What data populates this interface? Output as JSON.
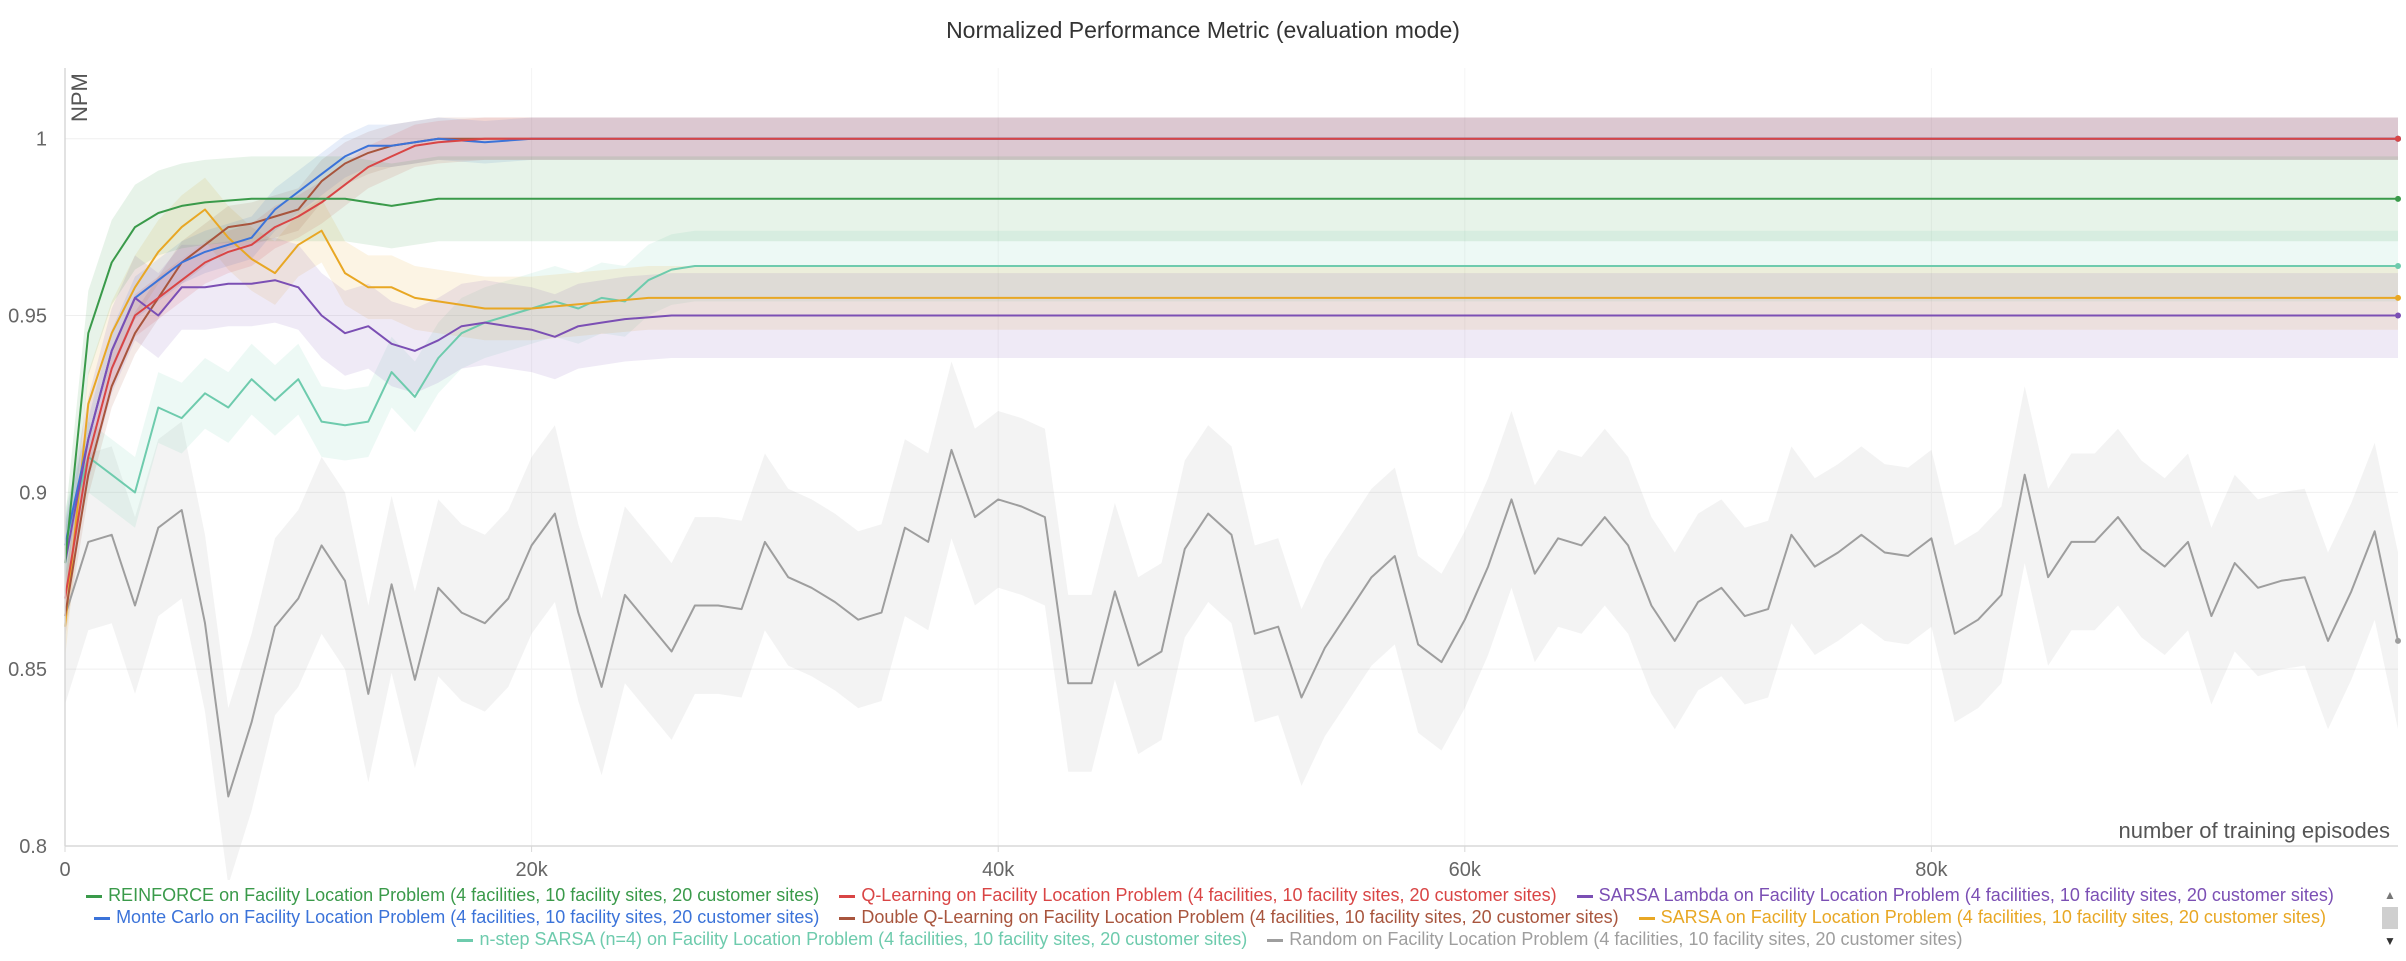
{
  "chart_data": {
    "type": "line",
    "title": "Normalized Performance Metric (evaluation mode)",
    "xlabel": "number of training episodes",
    "ylabel": "NPM",
    "xlim": [
      0,
      100000
    ],
    "ylim": [
      0.8,
      1.02
    ],
    "x_ticks": [
      {
        "v": 0,
        "label": "0"
      },
      {
        "v": 20000,
        "label": "20k"
      },
      {
        "v": 40000,
        "label": "40k"
      },
      {
        "v": 60000,
        "label": "60k"
      },
      {
        "v": 80000,
        "label": "80k"
      }
    ],
    "y_ticks": [
      {
        "v": 0.8,
        "label": "0.8"
      },
      {
        "v": 0.85,
        "label": "0.85"
      },
      {
        "v": 0.9,
        "label": "0.9"
      },
      {
        "v": 0.95,
        "label": "0.95"
      },
      {
        "v": 1.0,
        "label": "1"
      }
    ],
    "grid": true,
    "legend_position": "bottom",
    "series": [
      {
        "name": "REINFORCE on Facility Location Problem (4 facilities, 10 facility sites, 20 customer sites)",
        "color": "#3a9a4a",
        "x": [
          0,
          1000,
          2000,
          3000,
          4000,
          5000,
          6000,
          8000,
          10000,
          12000,
          14000,
          16000,
          20000,
          100000
        ],
        "y": [
          0.88,
          0.945,
          0.965,
          0.975,
          0.979,
          0.981,
          0.982,
          0.983,
          0.983,
          0.983,
          0.981,
          0.983,
          0.983,
          0.983
        ],
        "band": 0.012
      },
      {
        "name": "Q-Learning on Facility Location Problem (4 facilities, 10 facility sites, 20 customer sites)",
        "color": "#d94545",
        "x": [
          0,
          1000,
          2000,
          3000,
          4000,
          5000,
          6000,
          7000,
          8000,
          9000,
          10000,
          11000,
          12000,
          13000,
          14000,
          15000,
          16000,
          18000,
          20000,
          100000
        ],
        "y": [
          0.87,
          0.91,
          0.935,
          0.95,
          0.955,
          0.96,
          0.965,
          0.968,
          0.97,
          0.975,
          0.978,
          0.982,
          0.987,
          0.992,
          0.995,
          0.998,
          0.999,
          1.0,
          1.0,
          1.0
        ],
        "band": 0.006
      },
      {
        "name": "SARSA Lambda on Facility Location Problem (4 facilities, 10 facility sites, 20 customer sites)",
        "color": "#7b4fb4",
        "x": [
          0,
          1000,
          2000,
          3000,
          4000,
          5000,
          6000,
          7000,
          8000,
          9000,
          10000,
          11000,
          12000,
          13000,
          14000,
          15000,
          16000,
          17000,
          18000,
          19000,
          20000,
          21000,
          22000,
          23000,
          24000,
          26000,
          30000,
          100000
        ],
        "y": [
          0.88,
          0.915,
          0.94,
          0.955,
          0.95,
          0.958,
          0.958,
          0.959,
          0.959,
          0.96,
          0.958,
          0.95,
          0.945,
          0.947,
          0.942,
          0.94,
          0.943,
          0.947,
          0.948,
          0.947,
          0.946,
          0.944,
          0.947,
          0.948,
          0.949,
          0.95,
          0.95,
          0.95
        ],
        "band": 0.012
      },
      {
        "name": "Monte Carlo on Facility Location Problem (4 facilities, 10 facility sites, 20 customer sites)",
        "color": "#3b73d9",
        "x": [
          0,
          1000,
          2000,
          3000,
          4000,
          5000,
          6000,
          7000,
          8000,
          9000,
          10000,
          11000,
          12000,
          13000,
          14000,
          15000,
          16000,
          18000,
          20000,
          100000
        ],
        "y": [
          0.885,
          0.915,
          0.94,
          0.955,
          0.96,
          0.965,
          0.968,
          0.97,
          0.972,
          0.98,
          0.985,
          0.99,
          0.995,
          0.998,
          0.998,
          0.999,
          1.0,
          0.999,
          1.0,
          1.0
        ],
        "band": 0.006
      },
      {
        "name": "Double Q-Learning on Facility Location Problem (4 facilities, 10 facility sites, 20 customer sites)",
        "color": "#a8553d",
        "x": [
          0,
          1000,
          2000,
          3000,
          4000,
          5000,
          6000,
          7000,
          8000,
          9000,
          10000,
          11000,
          12000,
          13000,
          14000,
          15000,
          16000,
          18000,
          20000,
          100000
        ],
        "y": [
          0.865,
          0.905,
          0.93,
          0.945,
          0.955,
          0.965,
          0.97,
          0.975,
          0.976,
          0.978,
          0.98,
          0.988,
          0.993,
          0.996,
          0.998,
          0.999,
          1.0,
          1.0,
          1.0,
          1.0
        ],
        "band": 0.006
      },
      {
        "name": "SARSA on Facility Location Problem (4 facilities, 10 facility sites, 20 customer sites)",
        "color": "#e8a724",
        "x": [
          0,
          1000,
          2000,
          3000,
          4000,
          5000,
          6000,
          7000,
          8000,
          9000,
          10000,
          11000,
          12000,
          13000,
          14000,
          15000,
          16000,
          17000,
          18000,
          20000,
          25000,
          30000,
          100000
        ],
        "y": [
          0.862,
          0.925,
          0.945,
          0.958,
          0.968,
          0.975,
          0.98,
          0.972,
          0.966,
          0.962,
          0.97,
          0.974,
          0.962,
          0.958,
          0.958,
          0.955,
          0.954,
          0.953,
          0.952,
          0.952,
          0.955,
          0.955,
          0.955
        ],
        "band": 0.009
      },
      {
        "name": "n-step SARSA (n=4) on Facility Location Problem (4 facilities, 10 facility sites, 20 customer sites)",
        "color": "#6ecbad",
        "x": [
          0,
          1000,
          2000,
          3000,
          4000,
          5000,
          6000,
          7000,
          8000,
          9000,
          10000,
          11000,
          12000,
          13000,
          14000,
          15000,
          16000,
          17000,
          18000,
          19000,
          20000,
          21000,
          22000,
          23000,
          24000,
          25000,
          26000,
          27000,
          28000,
          30000,
          100000
        ],
        "y": [
          0.885,
          0.91,
          0.905,
          0.9,
          0.924,
          0.921,
          0.928,
          0.924,
          0.932,
          0.926,
          0.932,
          0.92,
          0.919,
          0.92,
          0.934,
          0.927,
          0.938,
          0.945,
          0.948,
          0.95,
          0.952,
          0.954,
          0.952,
          0.955,
          0.954,
          0.96,
          0.963,
          0.964,
          0.964,
          0.964,
          0.964
        ],
        "band": 0.01
      },
      {
        "name": "Random on Facility Location Problem (4 facilities, 10 facility sites, 20 customer sites)",
        "color": "#9e9e9e",
        "x": [
          0,
          1000,
          2000,
          3000,
          4000,
          5000,
          6000,
          7000,
          8000,
          9000,
          10000,
          11000,
          12000,
          13000,
          14000,
          15000,
          16000,
          17000,
          18000,
          19000,
          20000,
          21000,
          22000,
          23000,
          24000,
          25000,
          26000,
          27000,
          28000,
          29000,
          30000,
          31000,
          32000,
          33000,
          34000,
          35000,
          36000,
          37000,
          38000,
          39000,
          40000,
          41000,
          42000,
          43000,
          44000,
          45000,
          46000,
          47000,
          48000,
          49000,
          50000,
          51000,
          52000,
          53000,
          54000,
          55000,
          56000,
          57000,
          58000,
          59000,
          60000,
          61000,
          62000,
          63000,
          64000,
          65000,
          66000,
          67000,
          68000,
          69000,
          70000,
          71000,
          72000,
          73000,
          74000,
          75000,
          76000,
          77000,
          78000,
          79000,
          80000,
          81000,
          82000,
          83000,
          84000,
          85000,
          86000,
          87000,
          88000,
          89000,
          90000,
          91000,
          92000,
          93000,
          94000,
          95000,
          96000,
          97000,
          98000,
          99000,
          100000
        ],
        "y": [
          0.865,
          0.886,
          0.888,
          0.868,
          0.89,
          0.895,
          0.863,
          0.814,
          0.835,
          0.862,
          0.87,
          0.885,
          0.875,
          0.843,
          0.874,
          0.847,
          0.873,
          0.866,
          0.863,
          0.87,
          0.885,
          0.894,
          0.866,
          0.845,
          0.871,
          0.863,
          0.855,
          0.868,
          0.868,
          0.867,
          0.886,
          0.876,
          0.873,
          0.869,
          0.864,
          0.866,
          0.89,
          0.886,
          0.912,
          0.893,
          0.898,
          0.896,
          0.893,
          0.846,
          0.846,
          0.872,
          0.851,
          0.855,
          0.884,
          0.894,
          0.888,
          0.86,
          0.862,
          0.842,
          0.856,
          0.866,
          0.876,
          0.882,
          0.857,
          0.852,
          0.864,
          0.879,
          0.898,
          0.877,
          0.887,
          0.885,
          0.893,
          0.885,
          0.868,
          0.858,
          0.869,
          0.873,
          0.865,
          0.867,
          0.888,
          0.879,
          0.883,
          0.888,
          0.883,
          0.882,
          0.887,
          0.86,
          0.864,
          0.871,
          0.905,
          0.876,
          0.886,
          0.886,
          0.893,
          0.884,
          0.879,
          0.886,
          0.865,
          0.88,
          0.873,
          0.875,
          0.876,
          0.858,
          0.872,
          0.889,
          0.858
        ],
        "band": 0.025
      }
    ]
  },
  "legend_rows": [
    [
      0,
      1,
      2
    ],
    [
      3,
      4,
      5
    ],
    [
      6,
      7
    ]
  ]
}
